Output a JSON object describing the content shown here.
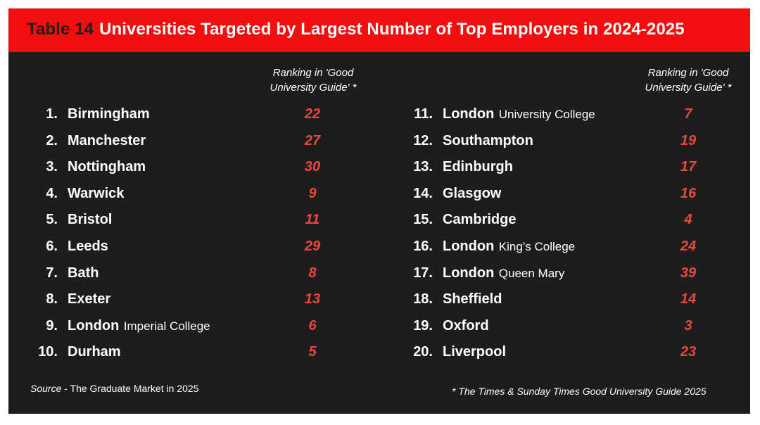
{
  "header": {
    "table_number": "Table 14",
    "title": "Universities Targeted by Largest Number of Top Employers in 2024-2025"
  },
  "column_header": {
    "line1": "Ranking in 'Good",
    "line2": "University Guide' *"
  },
  "left_rows": [
    {
      "num": "1.",
      "name": "Birmingham",
      "sub": "",
      "rank": "22"
    },
    {
      "num": "2.",
      "name": "Manchester",
      "sub": "",
      "rank": "27"
    },
    {
      "num": "3.",
      "name": "Nottingham",
      "sub": "",
      "rank": "30"
    },
    {
      "num": "4.",
      "name": "Warwick",
      "sub": "",
      "rank": "9"
    },
    {
      "num": "5.",
      "name": "Bristol",
      "sub": "",
      "rank": "11"
    },
    {
      "num": "6.",
      "name": "Leeds",
      "sub": "",
      "rank": "29"
    },
    {
      "num": "7.",
      "name": "Bath",
      "sub": "",
      "rank": "8"
    },
    {
      "num": "8.",
      "name": "Exeter",
      "sub": "",
      "rank": "13"
    },
    {
      "num": "9.",
      "name": "London",
      "sub": "Imperial College",
      "rank": "6"
    },
    {
      "num": "10.",
      "name": "Durham",
      "sub": "",
      "rank": "5"
    }
  ],
  "right_rows": [
    {
      "num": "11.",
      "name": "London",
      "sub": "University College",
      "rank": "7"
    },
    {
      "num": "12.",
      "name": "Southampton",
      "sub": "",
      "rank": "19"
    },
    {
      "num": "13.",
      "name": "Edinburgh",
      "sub": "",
      "rank": "17"
    },
    {
      "num": "14.",
      "name": "Glasgow",
      "sub": "",
      "rank": "16"
    },
    {
      "num": "15.",
      "name": "Cambridge",
      "sub": "",
      "rank": "4"
    },
    {
      "num": "16.",
      "name": "London",
      "sub": "King’s College",
      "rank": "24"
    },
    {
      "num": "17.",
      "name": "London",
      "sub": "Queen Mary",
      "rank": "39"
    },
    {
      "num": "18.",
      "name": "Sheffield",
      "sub": "",
      "rank": "14"
    },
    {
      "num": "19.",
      "name": "Oxford",
      "sub": "",
      "rank": "3"
    },
    {
      "num": "20.",
      "name": "Liverpool",
      "sub": "",
      "rank": "23"
    }
  ],
  "source": {
    "label": "Source",
    "text": " - The Graduate Market in 2025"
  },
  "footnote": "* The Times & Sunday Times Good University Guide 2025",
  "colors": {
    "banner": "#f20e0e",
    "background": "#1e1d1d",
    "rank_text": "#e8483e"
  }
}
